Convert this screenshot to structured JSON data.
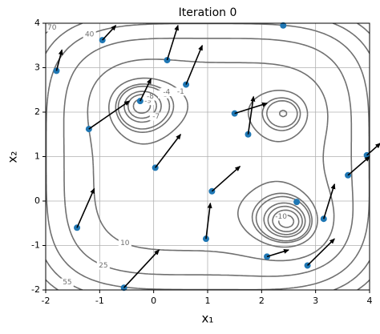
{
  "chart_data": {
    "type": "quiver",
    "title": "Iteration 0",
    "xlabel": "x₁",
    "ylabel": "x₂",
    "xlim": [
      -2,
      4
    ],
    "ylim": [
      -2,
      4
    ],
    "xticks": [
      -2,
      -1,
      0,
      1,
      2,
      3,
      4
    ],
    "yticks": [
      -2,
      -1,
      0,
      1,
      2,
      3,
      4
    ],
    "grid": true,
    "contour_color": "#707070",
    "contour_levels": [
      -13,
      -10,
      -9,
      -8,
      -7,
      -5,
      -4,
      -1,
      10,
      25,
      40,
      55,
      70,
      85
    ],
    "points": {
      "color": "#1f77b4",
      "x": [
        -1.8,
        -0.95,
        0.25,
        2.4,
        -0.25,
        0.6,
        -1.2,
        1.5,
        1.75,
        0.03,
        3.95,
        3.6,
        1.08,
        2.65,
        -1.42,
        0.97,
        3.15,
        2.1,
        2.85,
        -0.55
      ],
      "y": [
        2.93,
        3.62,
        3.17,
        3.95,
        2.25,
        2.62,
        1.62,
        1.97,
        1.5,
        0.75,
        1.03,
        0.58,
        0.22,
        -0.02,
        -0.6,
        -0.85,
        -0.4,
        -1.25,
        -1.45,
        -1.95
      ],
      "u": [
        0.1,
        0.25,
        0.2,
        null,
        0.2,
        0.3,
        0.75,
        0.6,
        0.1,
        0.47,
        0.25,
        0.4,
        0.52,
        null,
        0.32,
        0.08,
        0.2,
        0.4,
        0.5,
        0.65
      ],
      "v": [
        0.47,
        0.33,
        0.78,
        null,
        0.5,
        0.88,
        0.63,
        0.23,
        0.85,
        0.75,
        0.27,
        0.42,
        0.56,
        null,
        0.88,
        0.8,
        0.78,
        0.15,
        0.6,
        0.85
      ]
    }
  }
}
